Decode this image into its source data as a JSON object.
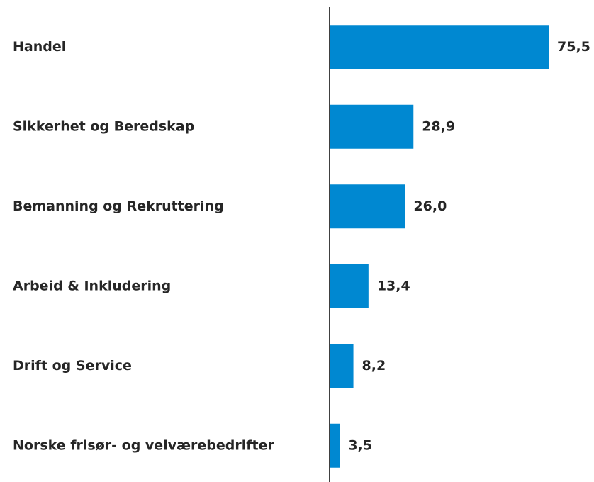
{
  "chart_data": {
    "type": "bar",
    "orientation": "horizontal",
    "categories": [
      "Handel",
      "Sikkerhet og Beredskap",
      "Bemanning og Rekruttering",
      "Arbeid & Inkludering",
      "Drift og Service",
      "Norske frisør- og velværebedrifter"
    ],
    "values": [
      75.5,
      28.9,
      26.0,
      13.4,
      8.2,
      3.5
    ],
    "value_labels": [
      "75,5",
      "28,9",
      "26,0",
      "13,4",
      "8,2",
      "3,5"
    ],
    "color": "#0088d1"
  }
}
